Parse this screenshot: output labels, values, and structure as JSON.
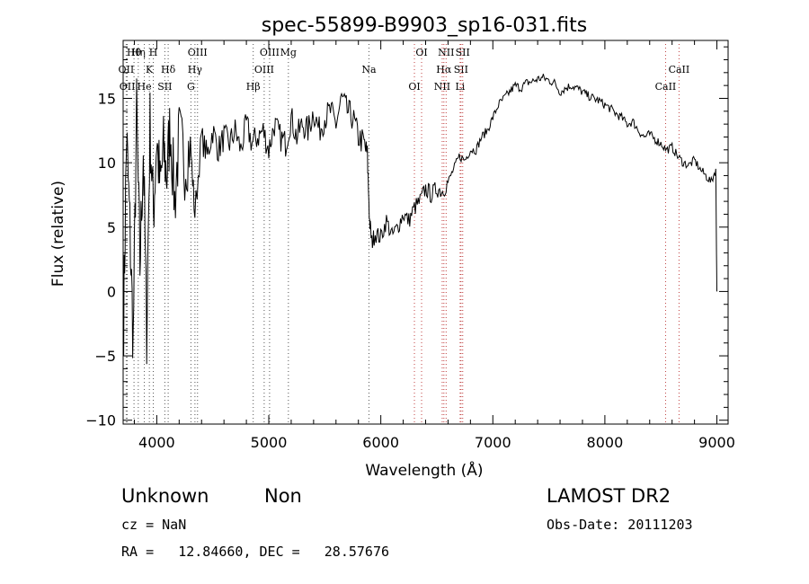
{
  "chart_data": {
    "type": "line",
    "title": "spec-55899-B9903_sp16-031.fits",
    "xlabel": "Wavelength (Å)",
    "ylabel": "Flux (relative)",
    "xlim": [
      3700,
      9100
    ],
    "ylim": [
      -10.3,
      19.5
    ],
    "xticks": [
      4000,
      5000,
      6000,
      7000,
      8000,
      9000
    ],
    "yticks": [
      -10,
      -5,
      0,
      5,
      10,
      15
    ],
    "grid": false,
    "series": [
      {
        "x": [
          3705,
          3730,
          3760,
          3790,
          3820,
          3850,
          3880,
          3910,
          3940,
          3970,
          4000,
          4030,
          4060,
          4090,
          4120,
          4160,
          4200,
          4250,
          4300,
          4340,
          4400,
          4450,
          4500,
          4550,
          4600,
          4650,
          4700,
          4750,
          4800,
          4850,
          4900,
          4950,
          5000,
          5050,
          5100,
          5150,
          5200,
          5250,
          5300,
          5350,
          5400,
          5450,
          5500,
          5550,
          5600,
          5650,
          5700,
          5750,
          5800,
          5850,
          5880,
          5900,
          5920,
          5950,
          6000,
          6050,
          6100,
          6150,
          6200,
          6250,
          6300,
          6350,
          6400,
          6450,
          6500,
          6550,
          6600,
          6650,
          6700,
          6750,
          6800,
          6850,
          6900,
          6950,
          7000,
          7050,
          7100,
          7150,
          7200,
          7250,
          7300,
          7350,
          7400,
          7450,
          7500,
          7550,
          7600,
          7650,
          7700,
          7750,
          7800,
          7850,
          7900,
          7950,
          8000,
          8050,
          8100,
          8150,
          8200,
          8250,
          8300,
          8350,
          8400,
          8450,
          8500,
          8550,
          8600,
          8650,
          8700,
          8750,
          8800,
          8850,
          8900,
          8950,
          8990,
          9000
        ],
        "y": [
          -2.0,
          12.0,
          5.0,
          -4.0,
          14.0,
          2.0,
          11.0,
          -3.0,
          13.0,
          6.0,
          12.0,
          8.0,
          11.0,
          9.0,
          13.0,
          7.0,
          12.0,
          10.0,
          11.5,
          6.0,
          12.0,
          10.5,
          12.5,
          11.0,
          12.0,
          11.5,
          12.5,
          11.0,
          13.0,
          11.5,
          12.0,
          12.5,
          11.0,
          13.0,
          12.0,
          11.5,
          13.5,
          12.0,
          13.0,
          12.5,
          14.0,
          12.5,
          13.5,
          14.0,
          13.0,
          15.0,
          14.0,
          13.5,
          12.0,
          11.5,
          10.5,
          5.5,
          3.8,
          4.5,
          4.2,
          5.5,
          4.3,
          5.0,
          6.0,
          5.5,
          6.5,
          7.0,
          8.0,
          7.5,
          8.0,
          7.8,
          8.5,
          9.5,
          10.5,
          10.2,
          11.0,
          11.0,
          12.0,
          12.5,
          13.5,
          14.5,
          15.0,
          15.5,
          16.0,
          15.8,
          16.2,
          16.3,
          16.5,
          16.6,
          16.4,
          16.2,
          15.5,
          15.8,
          16.0,
          15.8,
          15.5,
          15.2,
          15.0,
          14.8,
          14.5,
          14.2,
          13.8,
          13.5,
          13.0,
          13.2,
          12.5,
          12.0,
          12.2,
          11.8,
          11.5,
          11.0,
          11.2,
          10.5,
          10.0,
          9.8,
          10.2,
          9.5,
          9.0,
          8.5,
          9.5,
          0.0
        ]
      }
    ],
    "lines": [
      {
        "label": "Hθ",
        "x": 3797
      },
      {
        "label": "OII",
        "x": 3727
      },
      {
        "label": "OII",
        "x": 3737
      },
      {
        "label": "Hη",
        "x": 3835
      },
      {
        "label": "K",
        "x": 3934
      },
      {
        "label": "He",
        "x": 3889
      },
      {
        "label": "H",
        "x": 3969
      },
      {
        "label": "Hδ",
        "x": 4102
      },
      {
        "label": "SII",
        "x": 4072
      },
      {
        "label": "OIII",
        "x": 4364
      },
      {
        "label": "Hγ",
        "x": 4341
      },
      {
        "label": "G",
        "x": 4305
      },
      {
        "label": "OIII",
        "x": 5007
      },
      {
        "label": "OIII",
        "x": 4959
      },
      {
        "label": "Hβ",
        "x": 4861
      },
      {
        "label": "Mg",
        "x": 5175
      },
      {
        "label": "Na",
        "x": 5894
      },
      {
        "label": "OI",
        "x": 6300
      },
      {
        "label": "OI",
        "x": 6364
      },
      {
        "label": "Hα",
        "x": 6563
      },
      {
        "label": "NII",
        "x": 6548
      },
      {
        "label": "NII",
        "x": 6583
      },
      {
        "label": "SII",
        "x": 6716
      },
      {
        "label": "Li",
        "x": 6708
      },
      {
        "label": "SII",
        "x": 6731
      },
      {
        "label": "CaII",
        "x": 8662
      },
      {
        "label": "CaII",
        "x": 8542
      }
    ]
  },
  "info": {
    "object_class": "Unknown",
    "subclass": "Non",
    "survey": "LAMOST DR2",
    "redshift": "cz = NaN",
    "obs_date": "Obs-Date: 20111203",
    "coords": "RA =   12.84660, DEC =   28.57676"
  }
}
